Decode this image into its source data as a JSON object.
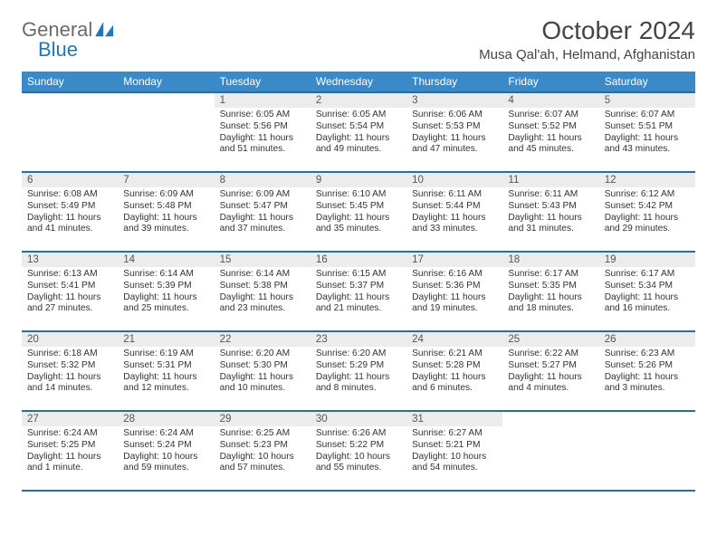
{
  "logo": {
    "word1": "General",
    "word2": "Blue",
    "accent": "#1f77c0",
    "gray": "#6b6b6b"
  },
  "title": "October 2024",
  "location": "Musa Qal'ah, Helmand, Afghanistan",
  "colors": {
    "header_bg": "#3a8ac9",
    "header_border": "#2a6ea0",
    "daynum_bg": "#ececec",
    "text": "#333333"
  },
  "weekdays": [
    "Sunday",
    "Monday",
    "Tuesday",
    "Wednesday",
    "Thursday",
    "Friday",
    "Saturday"
  ],
  "weeks": [
    [
      null,
      null,
      {
        "n": "1",
        "sr": "Sunrise: 6:05 AM",
        "ss": "Sunset: 5:56 PM",
        "dl": "Daylight: 11 hours and 51 minutes."
      },
      {
        "n": "2",
        "sr": "Sunrise: 6:05 AM",
        "ss": "Sunset: 5:54 PM",
        "dl": "Daylight: 11 hours and 49 minutes."
      },
      {
        "n": "3",
        "sr": "Sunrise: 6:06 AM",
        "ss": "Sunset: 5:53 PM",
        "dl": "Daylight: 11 hours and 47 minutes."
      },
      {
        "n": "4",
        "sr": "Sunrise: 6:07 AM",
        "ss": "Sunset: 5:52 PM",
        "dl": "Daylight: 11 hours and 45 minutes."
      },
      {
        "n": "5",
        "sr": "Sunrise: 6:07 AM",
        "ss": "Sunset: 5:51 PM",
        "dl": "Daylight: 11 hours and 43 minutes."
      }
    ],
    [
      {
        "n": "6",
        "sr": "Sunrise: 6:08 AM",
        "ss": "Sunset: 5:49 PM",
        "dl": "Daylight: 11 hours and 41 minutes."
      },
      {
        "n": "7",
        "sr": "Sunrise: 6:09 AM",
        "ss": "Sunset: 5:48 PM",
        "dl": "Daylight: 11 hours and 39 minutes."
      },
      {
        "n": "8",
        "sr": "Sunrise: 6:09 AM",
        "ss": "Sunset: 5:47 PM",
        "dl": "Daylight: 11 hours and 37 minutes."
      },
      {
        "n": "9",
        "sr": "Sunrise: 6:10 AM",
        "ss": "Sunset: 5:45 PM",
        "dl": "Daylight: 11 hours and 35 minutes."
      },
      {
        "n": "10",
        "sr": "Sunrise: 6:11 AM",
        "ss": "Sunset: 5:44 PM",
        "dl": "Daylight: 11 hours and 33 minutes."
      },
      {
        "n": "11",
        "sr": "Sunrise: 6:11 AM",
        "ss": "Sunset: 5:43 PM",
        "dl": "Daylight: 11 hours and 31 minutes."
      },
      {
        "n": "12",
        "sr": "Sunrise: 6:12 AM",
        "ss": "Sunset: 5:42 PM",
        "dl": "Daylight: 11 hours and 29 minutes."
      }
    ],
    [
      {
        "n": "13",
        "sr": "Sunrise: 6:13 AM",
        "ss": "Sunset: 5:41 PM",
        "dl": "Daylight: 11 hours and 27 minutes."
      },
      {
        "n": "14",
        "sr": "Sunrise: 6:14 AM",
        "ss": "Sunset: 5:39 PM",
        "dl": "Daylight: 11 hours and 25 minutes."
      },
      {
        "n": "15",
        "sr": "Sunrise: 6:14 AM",
        "ss": "Sunset: 5:38 PM",
        "dl": "Daylight: 11 hours and 23 minutes."
      },
      {
        "n": "16",
        "sr": "Sunrise: 6:15 AM",
        "ss": "Sunset: 5:37 PM",
        "dl": "Daylight: 11 hours and 21 minutes."
      },
      {
        "n": "17",
        "sr": "Sunrise: 6:16 AM",
        "ss": "Sunset: 5:36 PM",
        "dl": "Daylight: 11 hours and 19 minutes."
      },
      {
        "n": "18",
        "sr": "Sunrise: 6:17 AM",
        "ss": "Sunset: 5:35 PM",
        "dl": "Daylight: 11 hours and 18 minutes."
      },
      {
        "n": "19",
        "sr": "Sunrise: 6:17 AM",
        "ss": "Sunset: 5:34 PM",
        "dl": "Daylight: 11 hours and 16 minutes."
      }
    ],
    [
      {
        "n": "20",
        "sr": "Sunrise: 6:18 AM",
        "ss": "Sunset: 5:32 PM",
        "dl": "Daylight: 11 hours and 14 minutes."
      },
      {
        "n": "21",
        "sr": "Sunrise: 6:19 AM",
        "ss": "Sunset: 5:31 PM",
        "dl": "Daylight: 11 hours and 12 minutes."
      },
      {
        "n": "22",
        "sr": "Sunrise: 6:20 AM",
        "ss": "Sunset: 5:30 PM",
        "dl": "Daylight: 11 hours and 10 minutes."
      },
      {
        "n": "23",
        "sr": "Sunrise: 6:20 AM",
        "ss": "Sunset: 5:29 PM",
        "dl": "Daylight: 11 hours and 8 minutes."
      },
      {
        "n": "24",
        "sr": "Sunrise: 6:21 AM",
        "ss": "Sunset: 5:28 PM",
        "dl": "Daylight: 11 hours and 6 minutes."
      },
      {
        "n": "25",
        "sr": "Sunrise: 6:22 AM",
        "ss": "Sunset: 5:27 PM",
        "dl": "Daylight: 11 hours and 4 minutes."
      },
      {
        "n": "26",
        "sr": "Sunrise: 6:23 AM",
        "ss": "Sunset: 5:26 PM",
        "dl": "Daylight: 11 hours and 3 minutes."
      }
    ],
    [
      {
        "n": "27",
        "sr": "Sunrise: 6:24 AM",
        "ss": "Sunset: 5:25 PM",
        "dl": "Daylight: 11 hours and 1 minute."
      },
      {
        "n": "28",
        "sr": "Sunrise: 6:24 AM",
        "ss": "Sunset: 5:24 PM",
        "dl": "Daylight: 10 hours and 59 minutes."
      },
      {
        "n": "29",
        "sr": "Sunrise: 6:25 AM",
        "ss": "Sunset: 5:23 PM",
        "dl": "Daylight: 10 hours and 57 minutes."
      },
      {
        "n": "30",
        "sr": "Sunrise: 6:26 AM",
        "ss": "Sunset: 5:22 PM",
        "dl": "Daylight: 10 hours and 55 minutes."
      },
      {
        "n": "31",
        "sr": "Sunrise: 6:27 AM",
        "ss": "Sunset: 5:21 PM",
        "dl": "Daylight: 10 hours and 54 minutes."
      },
      null,
      null
    ]
  ]
}
